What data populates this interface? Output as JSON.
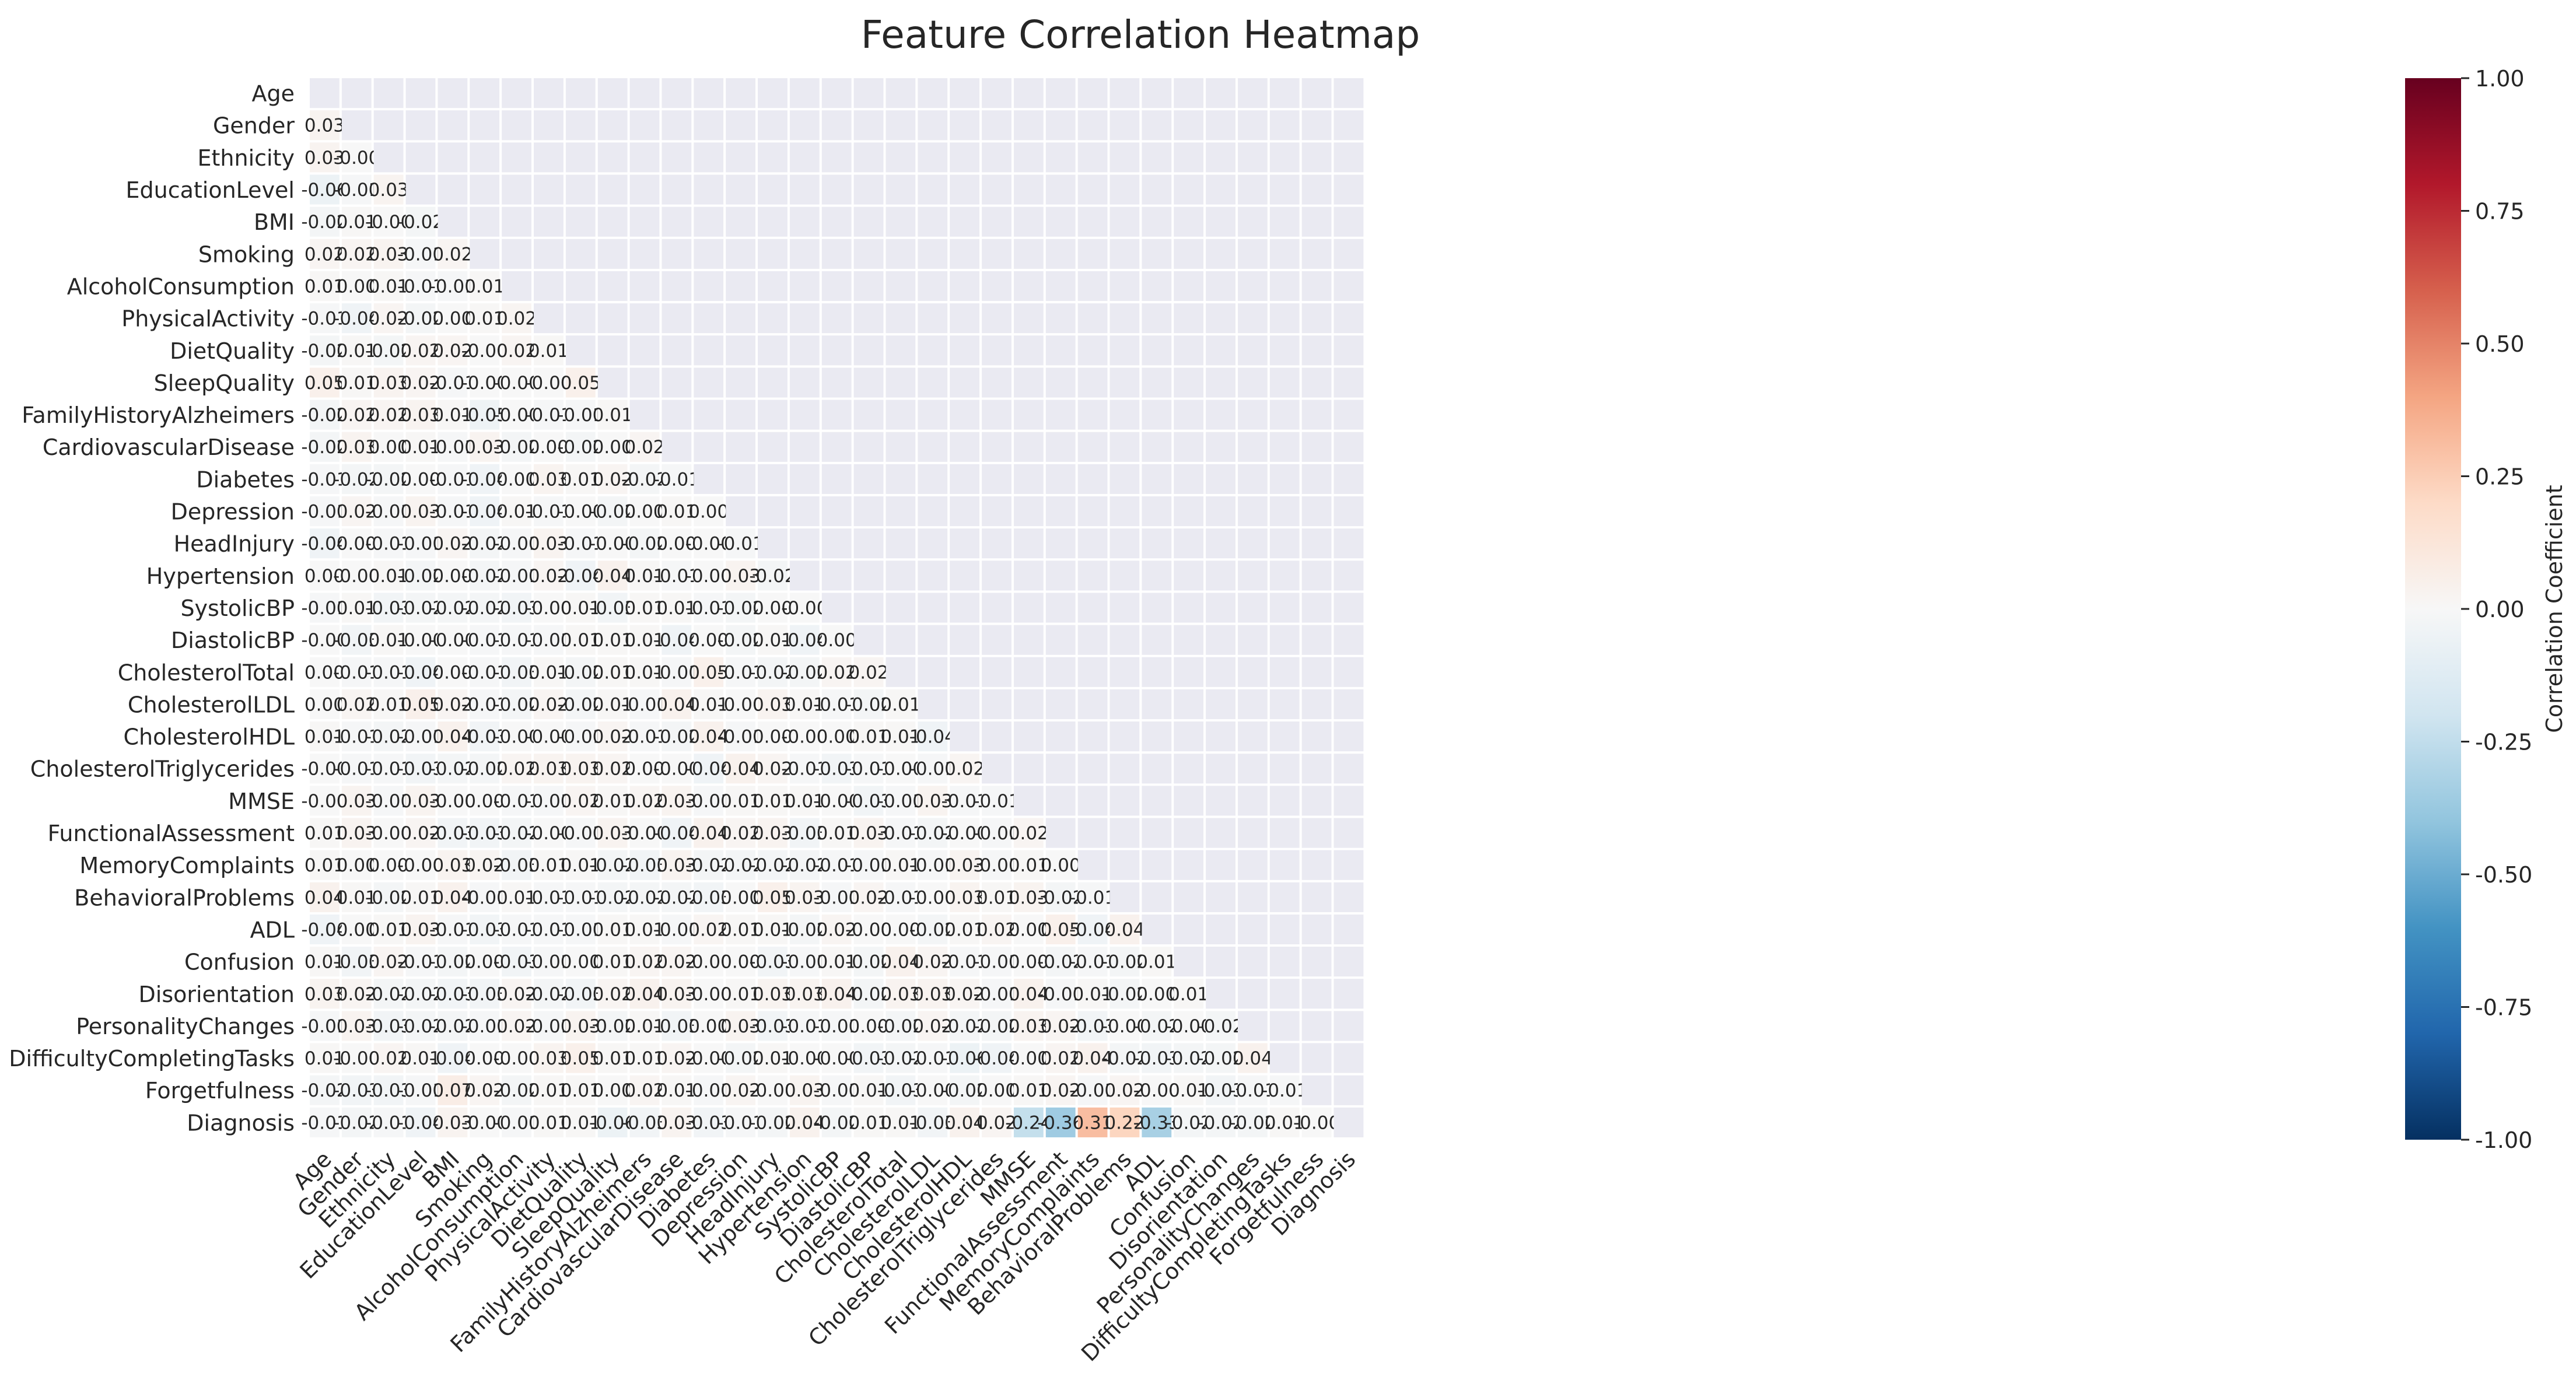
{
  "chart_data": {
    "type": "heatmap",
    "title": "Feature Correlation Heatmap",
    "mask": "upper-triangle-including-diagonal",
    "labels": [
      "Age",
      "Gender",
      "Ethnicity",
      "EducationLevel",
      "BMI",
      "Smoking",
      "AlcoholConsumption",
      "PhysicalActivity",
      "DietQuality",
      "SleepQuality",
      "FamilyHistoryAlzheimers",
      "CardiovascularDisease",
      "Diabetes",
      "Depression",
      "HeadInjury",
      "Hypertension",
      "SystolicBP",
      "DiastolicBP",
      "CholesterolTotal",
      "CholesterolLDL",
      "CholesterolHDL",
      "CholesterolTriglycerides",
      "MMSE",
      "FunctionalAssessment",
      "MemoryComplaints",
      "BehavioralProblems",
      "ADL",
      "Confusion",
      "Disorientation",
      "PersonalityChanges",
      "DifficultyCompletingTasks",
      "Forgetfulness",
      "Diagnosis"
    ],
    "rows": [
      [],
      [
        "0.03"
      ],
      [
        "0.03",
        "-0.00"
      ],
      [
        "-0.06",
        "-0.01",
        "0.03"
      ],
      [
        "-0.02",
        "0.01",
        "-0.00",
        "-0.02"
      ],
      [
        "0.02",
        "0.02",
        "0.03",
        "-0.01",
        "0.02"
      ],
      [
        "0.01",
        "0.00",
        "0.01",
        "-0.01",
        "-0.01",
        "0.01"
      ],
      [
        "-0.01",
        "-0.04",
        "0.02",
        "-0.02",
        "0.00",
        "0.01",
        "0.02"
      ],
      [
        "-0.02",
        "0.01",
        "-0.02",
        "0.02",
        "0.02",
        "-0.00",
        "0.02",
        "0.01"
      ],
      [
        "0.05",
        "0.01",
        "0.03",
        "0.02",
        "-0.01",
        "-0.00",
        "-0.00",
        "-0.00",
        "0.05"
      ],
      [
        "-0.02",
        "0.02",
        "0.02",
        "0.03",
        "0.01",
        "-0.05",
        "-0.00",
        "-0.01",
        "-0.01",
        "0.01"
      ],
      [
        "-0.02",
        "0.03",
        "0.00",
        "0.01",
        "-0.01",
        "0.03",
        "-0.02",
        "0.00",
        "-0.02",
        "0.00",
        "0.02"
      ],
      [
        "-0.01",
        "-0.02",
        "-0.02",
        "0.00",
        "-0.01",
        "-0.04",
        "0.00",
        "0.03",
        "0.01",
        "0.02",
        "-0.02",
        "-0.01"
      ],
      [
        "-0.01",
        "0.02",
        "-0.01",
        "0.03",
        "-0.01",
        "-0.04",
        "0.01",
        "-0.01",
        "-0.00",
        "-0.02",
        "0.00",
        "0.01",
        "0.00"
      ],
      [
        "-0.04",
        "0.00",
        "-0.01",
        "-0.01",
        "0.02",
        "-0.02",
        "-0.01",
        "0.03",
        "-0.01",
        "-0.00",
        "-0.02",
        "0.00",
        "-0.00",
        "-0.01"
      ],
      [
        "0.00",
        "-0.00",
        "0.01",
        "-0.02",
        "0.00",
        "-0.02",
        "-0.01",
        "0.02",
        "-0.04",
        "0.04",
        "0.01",
        "-0.01",
        "-0.00",
        "0.03",
        "-0.02"
      ],
      [
        "-0.01",
        "0.01",
        "-0.03",
        "-0.02",
        "-0.02",
        "-0.02",
        "-0.03",
        "-0.00",
        "0.01",
        "-0.03",
        "0.01",
        "0.01",
        "-0.01",
        "-0.02",
        "0.00",
        "-0.00"
      ],
      [
        "-0.00",
        "-0.03",
        "0.01",
        "-0.00",
        "-0.00",
        "-0.01",
        "-0.01",
        "-0.01",
        "0.01",
        "0.01",
        "0.01",
        "-0.04",
        "0.00",
        "-0.02",
        "0.01",
        "-0.04",
        "0.00"
      ],
      [
        "0.00",
        "-0.01",
        "-0.01",
        "-0.04",
        "0.00",
        "-0.01",
        "-0.03",
        "0.01",
        "-0.02",
        "0.01",
        "0.01",
        "-0.01",
        "0.05",
        "-0.01",
        "-0.02",
        "-0.02",
        "0.02",
        "0.02"
      ],
      [
        "0.00",
        "0.02",
        "0.01",
        "0.05",
        "0.02",
        "-0.01",
        "-0.02",
        "0.02",
        "-0.02",
        "0.01",
        "-0.01",
        "0.04",
        "0.01",
        "-0.00",
        "0.03",
        "0.01",
        "-0.01",
        "-0.02",
        "0.01"
      ],
      [
        "0.01",
        "-0.01",
        "-0.02",
        "-0.01",
        "0.04",
        "-0.03",
        "-0.00",
        "-0.00",
        "-0.01",
        "0.02",
        "-0.01",
        "-0.02",
        "0.04",
        "-0.01",
        "0.00",
        "-0.00",
        "0.00",
        "0.01",
        "0.01",
        "-0.04"
      ],
      [
        "-0.00",
        "-0.01",
        "-0.01",
        "-0.03",
        "-0.02",
        "-0.02",
        "0.02",
        "0.03",
        "0.03",
        "0.02",
        "0.00",
        "-0.00",
        "-0.04",
        "0.04",
        "0.02",
        "-0.01",
        "-0.03",
        "-0.01",
        "-0.00",
        "-0.01",
        "0.02"
      ],
      [
        "-0.00",
        "0.03",
        "-0.01",
        "0.03",
        "-0.00",
        "0.00",
        "-0.01",
        "-0.01",
        "0.02",
        "0.01",
        "0.02",
        "0.03",
        "-0.01",
        "0.01",
        "0.01",
        "0.01",
        "-0.00",
        "-0.03",
        "-0.01",
        "0.03",
        "-0.01",
        "-0.01"
      ],
      [
        "0.01",
        "0.03",
        "-0.00",
        "0.02",
        "-0.03",
        "-0.03",
        "-0.02",
        "-0.00",
        "-0.01",
        "0.03",
        "-0.00",
        "-0.04",
        "0.04",
        "0.02",
        "0.03",
        "-0.03",
        "0.01",
        "0.03",
        "-0.01",
        "-0.02",
        "-0.00",
        "-0.01",
        "0.02"
      ],
      [
        "0.01",
        "0.00",
        "0.00",
        "-0.00",
        "0.03",
        "0.02",
        "-0.03",
        "0.01",
        "0.01",
        "-0.02",
        "-0.03",
        "0.03",
        "-0.02",
        "-0.02",
        "-0.02",
        "-0.02",
        "-0.01",
        "-0.01",
        "0.01",
        "-0.01",
        "0.03",
        "-0.01",
        "0.01",
        "0.00"
      ],
      [
        "0.04",
        "0.01",
        "-0.02",
        "0.01",
        "0.04",
        "-0.01",
        "0.01",
        "-0.01",
        "-0.01",
        "-0.02",
        "-0.02",
        "-0.02",
        "-0.03",
        "0.00",
        "0.05",
        "0.03",
        "-0.01",
        "0.02",
        "-0.01",
        "-0.00",
        "0.03",
        "0.01",
        "0.03",
        "-0.02",
        "-0.01"
      ],
      [
        "-0.04",
        "0.00",
        "0.01",
        "0.03",
        "-0.01",
        "-0.03",
        "-0.01",
        "-0.01",
        "-0.01",
        "0.01",
        "0.01",
        "-0.01",
        "0.02",
        "0.01",
        "0.01",
        "-0.02",
        "0.02",
        "-0.00",
        "0.00",
        "-0.02",
        "0.01",
        "0.02",
        "0.00",
        "0.05",
        "-0.04",
        "0.04"
      ],
      [
        "0.01",
        "-0.03",
        "0.02",
        "-0.01",
        "-0.02",
        "0.00",
        "-0.03",
        "-0.01",
        "0.00",
        "0.01",
        "0.02",
        "0.02",
        "-0.00",
        "0.00",
        "-0.03",
        "-0.01",
        "0.01",
        "-0.02",
        "0.04",
        "0.02",
        "-0.01",
        "-0.01",
        "0.00",
        "-0.02",
        "-0.01",
        "-0.02",
        "0.01"
      ],
      [
        "0.03",
        "0.02",
        "-0.02",
        "-0.02",
        "-0.03",
        "-0.03",
        "0.02",
        "-0.02",
        "-0.03",
        "0.02",
        "0.04",
        "0.03",
        "-0.00",
        "0.01",
        "0.03",
        "0.03",
        "0.04",
        "-0.02",
        "0.03",
        "0.03",
        "0.02",
        "-0.01",
        "0.04",
        "-0.01",
        "0.01",
        "-0.02",
        "0.00",
        "0.01"
      ],
      [
        "-0.01",
        "0.03",
        "-0.03",
        "-0.02",
        "-0.02",
        "-0.01",
        "0.02",
        "-0.01",
        "0.03",
        "-0.02",
        "0.01",
        "-0.03",
        "0.00",
        "0.03",
        "-0.03",
        "-0.01",
        "-0.01",
        "0.00",
        "-0.02",
        "0.02",
        "-0.02",
        "-0.02",
        "0.03",
        "0.02",
        "-0.03",
        "-0.00",
        "-0.02",
        "-0.00",
        "-0.02"
      ],
      [
        "0.01",
        "-0.00",
        "0.02",
        "0.01",
        "-0.04",
        "0.00",
        "-0.00",
        "0.03",
        "0.05",
        "0.01",
        "0.01",
        "0.02",
        "-0.00",
        "-0.02",
        "0.01",
        "-0.00",
        "-0.00",
        "-0.03",
        "-0.02",
        "-0.01",
        "-0.06",
        "-0.04",
        "0.00",
        "0.02",
        "0.04",
        "-0.02",
        "-0.03",
        "-0.02",
        "-0.02",
        "0.04"
      ],
      [
        "-0.02",
        "-0.03",
        "-0.03",
        "-0.01",
        "0.07",
        "0.02",
        "-0.02",
        "0.01",
        "0.01",
        "0.00",
        "0.02",
        "0.01",
        "-0.01",
        "0.02",
        "-0.00",
        "0.03",
        "-0.01",
        "0.01",
        "-0.03",
        "-0.00",
        "-0.02",
        "0.00",
        "0.01",
        "0.02",
        "-0.01",
        "0.02",
        "-0.00",
        "0.01",
        "-0.03",
        "-0.01",
        "-0.01"
      ],
      [
        "-0.01",
        "-0.02",
        "-0.01",
        "-0.04",
        "0.03",
        "-0.00",
        "-0.01",
        "0.01",
        "0.01",
        "-0.06",
        "-0.03",
        "0.03",
        "-0.03",
        "-0.01",
        "-0.02",
        "0.04",
        "-0.02",
        "0.01",
        "0.01",
        "-0.03",
        "0.04",
        "0.02",
        "-0.24",
        "-0.36",
        "0.31",
        "0.22",
        "-0.33",
        "-0.02",
        "-0.02",
        "-0.02",
        "0.01",
        "-0.00"
      ]
    ],
    "vmin": -1,
    "vmax": 1,
    "colormap": "RdBu_r",
    "colorbar": {
      "label": "Correlation Coefficient",
      "ticks": [
        "1.00",
        "0.75",
        "0.50",
        "0.25",
        "0.00",
        "-0.25",
        "-0.50",
        "-0.75",
        "-1.00"
      ]
    },
    "colors": {
      "masked": "#eaeaf2",
      "grid": "#ffffff",
      "text": "#262626"
    }
  }
}
